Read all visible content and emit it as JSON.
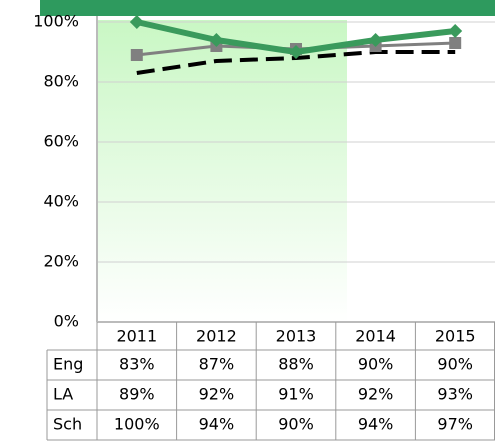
{
  "chart_data": {
    "type": "line",
    "categories": [
      "2011",
      "2012",
      "2013",
      "2014",
      "2015"
    ],
    "series": [
      {
        "name": "Eng",
        "color": "#000000",
        "values": [
          83,
          87,
          88,
          90,
          90
        ],
        "value_labels": [
          "83%",
          "87%",
          "88%",
          "90%",
          "90%"
        ]
      },
      {
        "name": "LA",
        "color": "#808080",
        "values": [
          89,
          92,
          91,
          92,
          93
        ],
        "value_labels": [
          "89%",
          "92%",
          "91%",
          "92%",
          "93%"
        ]
      },
      {
        "name": "Sch",
        "color": "#3a9a5c",
        "values": [
          100,
          94,
          90,
          94,
          97
        ],
        "value_labels": [
          "100%",
          "94%",
          "90%",
          "94%",
          "97%"
        ]
      }
    ],
    "ylim": [
      0,
      100
    ],
    "yticks": [
      {
        "value": 0,
        "label": "0%"
      },
      {
        "value": 20,
        "label": "20%"
      },
      {
        "value": 40,
        "label": "40%"
      },
      {
        "value": 60,
        "label": "60%"
      },
      {
        "value": 80,
        "label": "80%"
      },
      {
        "value": 100,
        "label": "100%"
      }
    ],
    "grid": true
  }
}
